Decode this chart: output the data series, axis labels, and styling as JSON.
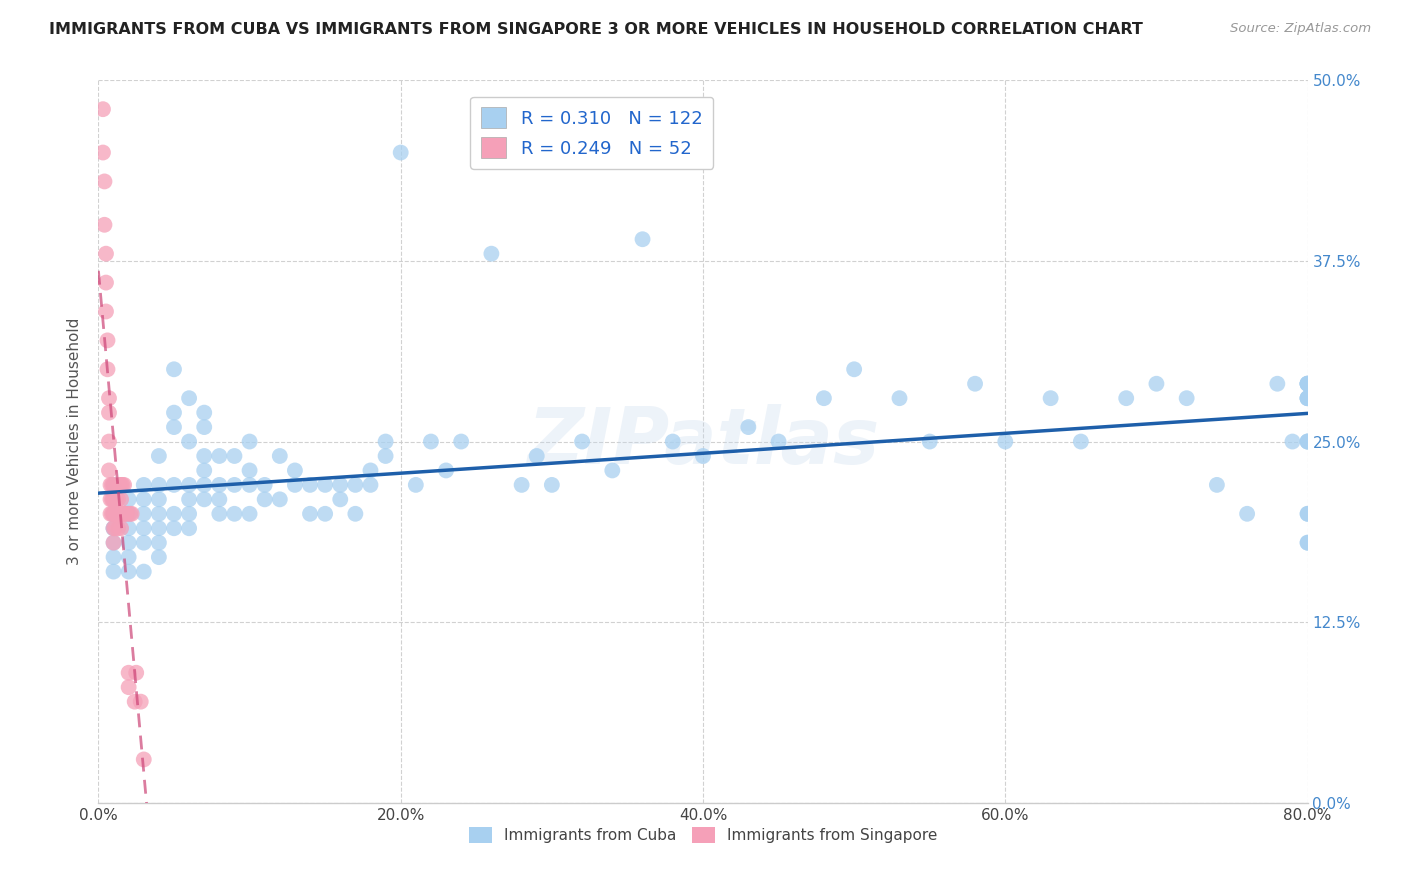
{
  "title": "IMMIGRANTS FROM CUBA VS IMMIGRANTS FROM SINGAPORE 3 OR MORE VEHICLES IN HOUSEHOLD CORRELATION CHART",
  "source": "Source: ZipAtlas.com",
  "ylabel": "3 or more Vehicles in Household",
  "x_tick_labels": [
    "0.0%",
    "20.0%",
    "40.0%",
    "60.0%",
    "80.0%"
  ],
  "y_tick_labels_right": [
    "50.0%",
    "37.5%",
    "25.0%",
    "12.5%",
    "0.0%"
  ],
  "y_tick_labels_right_ordered": [
    "0.0%",
    "12.5%",
    "25.0%",
    "37.5%",
    "50.0%"
  ],
  "xlim": [
    0.0,
    0.8
  ],
  "ylim": [
    0.0,
    0.5
  ],
  "legend_label_cuba": "Immigrants from Cuba",
  "legend_label_singapore": "Immigrants from Singapore",
  "R_cuba": 0.31,
  "N_cuba": 122,
  "R_singapore": 0.249,
  "N_singapore": 52,
  "color_cuba": "#A8D0F0",
  "color_singapore": "#F5A0B8",
  "trendline_cuba_color": "#1E5FAA",
  "trendline_singapore_color": "#CC4477",
  "watermark": "ZIPatlas",
  "background_color": "#FFFFFF",
  "grid_color": "#CCCCCC",
  "title_color": "#222222",
  "axis_label_color": "#555555",
  "right_tick_color": "#4488CC",
  "legend_R_color": "#2266CC",
  "cuba_x": [
    0.01,
    0.01,
    0.01,
    0.01,
    0.01,
    0.01,
    0.01,
    0.01,
    0.02,
    0.02,
    0.02,
    0.02,
    0.02,
    0.02,
    0.02,
    0.03,
    0.03,
    0.03,
    0.03,
    0.03,
    0.03,
    0.04,
    0.04,
    0.04,
    0.04,
    0.04,
    0.04,
    0.04,
    0.05,
    0.05,
    0.05,
    0.05,
    0.05,
    0.05,
    0.06,
    0.06,
    0.06,
    0.06,
    0.06,
    0.06,
    0.07,
    0.07,
    0.07,
    0.07,
    0.07,
    0.07,
    0.08,
    0.08,
    0.08,
    0.08,
    0.09,
    0.09,
    0.09,
    0.1,
    0.1,
    0.1,
    0.1,
    0.11,
    0.11,
    0.12,
    0.12,
    0.13,
    0.13,
    0.14,
    0.14,
    0.15,
    0.15,
    0.16,
    0.16,
    0.17,
    0.17,
    0.18,
    0.18,
    0.19,
    0.19,
    0.2,
    0.21,
    0.22,
    0.23,
    0.24,
    0.26,
    0.28,
    0.29,
    0.3,
    0.32,
    0.34,
    0.36,
    0.38,
    0.4,
    0.43,
    0.45,
    0.48,
    0.5,
    0.53,
    0.55,
    0.58,
    0.6,
    0.63,
    0.65,
    0.68,
    0.7,
    0.72,
    0.74,
    0.76,
    0.78,
    0.79,
    0.8,
    0.8,
    0.8,
    0.8,
    0.8,
    0.8,
    0.8,
    0.8,
    0.8,
    0.8,
    0.8,
    0.8,
    0.8,
    0.8,
    0.8,
    0.8
  ],
  "cuba_y": [
    0.2,
    0.19,
    0.18,
    0.22,
    0.17,
    0.16,
    0.19,
    0.21,
    0.2,
    0.21,
    0.18,
    0.17,
    0.16,
    0.19,
    0.2,
    0.19,
    0.22,
    0.18,
    0.16,
    0.2,
    0.21,
    0.2,
    0.22,
    0.19,
    0.24,
    0.18,
    0.17,
    0.21,
    0.3,
    0.26,
    0.27,
    0.22,
    0.2,
    0.19,
    0.25,
    0.28,
    0.22,
    0.2,
    0.19,
    0.21,
    0.27,
    0.24,
    0.26,
    0.22,
    0.23,
    0.21,
    0.22,
    0.24,
    0.21,
    0.2,
    0.22,
    0.24,
    0.2,
    0.25,
    0.23,
    0.22,
    0.2,
    0.22,
    0.21,
    0.24,
    0.21,
    0.22,
    0.23,
    0.22,
    0.2,
    0.22,
    0.2,
    0.22,
    0.21,
    0.22,
    0.2,
    0.22,
    0.23,
    0.25,
    0.24,
    0.45,
    0.22,
    0.25,
    0.23,
    0.25,
    0.38,
    0.22,
    0.24,
    0.22,
    0.25,
    0.23,
    0.39,
    0.25,
    0.24,
    0.26,
    0.25,
    0.28,
    0.3,
    0.28,
    0.25,
    0.29,
    0.25,
    0.28,
    0.25,
    0.28,
    0.29,
    0.28,
    0.22,
    0.2,
    0.29,
    0.25,
    0.18,
    0.29,
    0.28,
    0.25,
    0.28,
    0.29,
    0.2,
    0.25,
    0.18,
    0.29,
    0.28,
    0.25,
    0.28,
    0.29,
    0.2,
    0.29
  ],
  "singapore_x": [
    0.003,
    0.003,
    0.004,
    0.004,
    0.005,
    0.005,
    0.005,
    0.006,
    0.006,
    0.007,
    0.007,
    0.007,
    0.007,
    0.008,
    0.008,
    0.008,
    0.009,
    0.009,
    0.009,
    0.01,
    0.01,
    0.01,
    0.01,
    0.01,
    0.01,
    0.011,
    0.011,
    0.012,
    0.012,
    0.013,
    0.013,
    0.013,
    0.014,
    0.014,
    0.015,
    0.015,
    0.015,
    0.015,
    0.016,
    0.016,
    0.017,
    0.017,
    0.018,
    0.019,
    0.02,
    0.02,
    0.021,
    0.022,
    0.024,
    0.025,
    0.028,
    0.03
  ],
  "singapore_y": [
    0.48,
    0.45,
    0.43,
    0.4,
    0.38,
    0.36,
    0.34,
    0.32,
    0.3,
    0.28,
    0.27,
    0.25,
    0.23,
    0.22,
    0.21,
    0.2,
    0.22,
    0.21,
    0.2,
    0.22,
    0.21,
    0.2,
    0.19,
    0.18,
    0.21,
    0.2,
    0.19,
    0.21,
    0.2,
    0.2,
    0.19,
    0.21,
    0.22,
    0.2,
    0.22,
    0.21,
    0.19,
    0.2,
    0.22,
    0.2,
    0.22,
    0.2,
    0.2,
    0.2,
    0.09,
    0.08,
    0.2,
    0.2,
    0.07,
    0.09,
    0.07,
    0.03
  ]
}
